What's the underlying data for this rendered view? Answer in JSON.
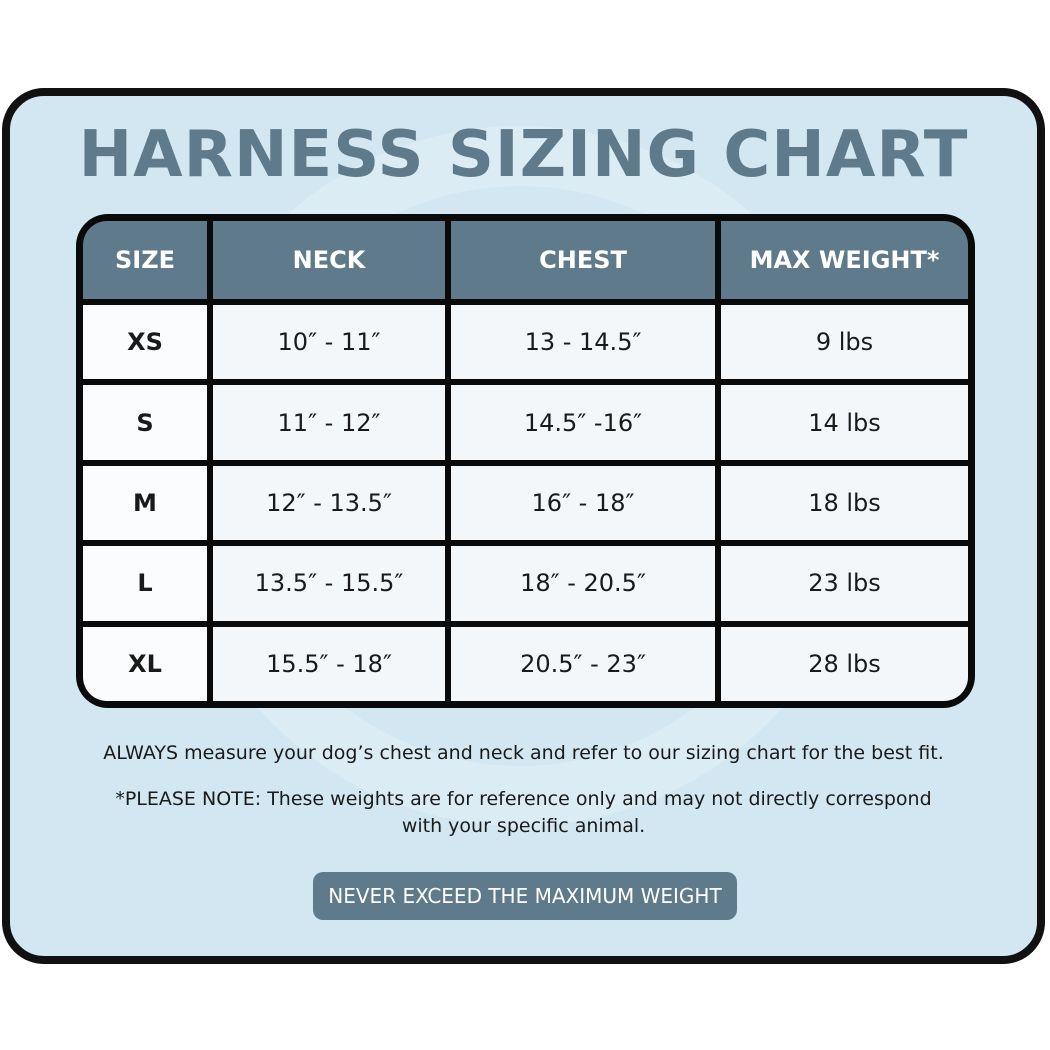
{
  "title": "HARNESS SIZING CHART",
  "colors": {
    "panel_bg": "#d3e7f2",
    "accent": "#5f7a8a",
    "border": "#111111"
  },
  "table": {
    "headers": [
      "SIZE",
      "NECK",
      "CHEST",
      "MAX WEIGHT*"
    ],
    "rows": [
      [
        "XS",
        "10″ - 11″",
        "13 - 14.5″",
        "9 lbs"
      ],
      [
        "S",
        "11″ - 12″",
        "14.5″ -16″",
        "14 lbs"
      ],
      [
        "M",
        "12″ - 13.5″",
        "16″ - 18″",
        "18 lbs"
      ],
      [
        "L",
        "13.5″ - 15.5″",
        "18″ - 20.5″",
        "23 lbs"
      ],
      [
        "XL",
        "15.5″ - 18″",
        "20.5″ - 23″",
        "28 lbs"
      ]
    ]
  },
  "notes": {
    "measure": "ALWAYS measure your dog’s chest and neck and refer to our sizing chart for the best fit.",
    "please_note_line1": "*PLEASE NOTE: These weights are for reference only and may not directly correspond",
    "please_note_line2": "with your specific animal."
  },
  "button": {
    "label": "NEVER EXCEED THE MAXIMUM WEIGHT"
  }
}
